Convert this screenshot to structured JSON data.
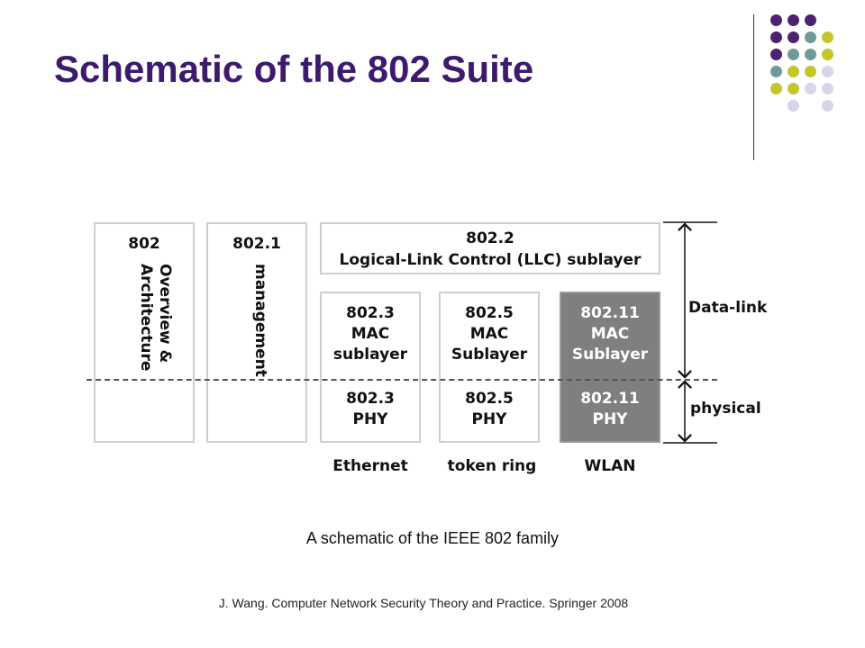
{
  "title": "Schematic of the 802 Suite",
  "colors": {
    "title": "#3d1a6e",
    "dot_purple": "#4b2370",
    "dot_teal": "#6f9a9a",
    "dot_olive": "#c5c62a",
    "dot_lavender": "#d6d6e8",
    "box_dark": "#7f7f7f"
  },
  "diagram": {
    "box_802": {
      "number": "802",
      "vertical_line1": "Overview &",
      "vertical_line2": "Architecture"
    },
    "box_8021": {
      "number": "802.1",
      "vertical_text": "management"
    },
    "box_8022": {
      "line1": "802.2",
      "line2": "Logical-Link Control (LLC) sublayer"
    },
    "ethernet_mac": {
      "line1": "802.3",
      "line2": "MAC",
      "line3": "sublayer"
    },
    "ethernet_phy": {
      "line1": "802.3",
      "line2": "PHY"
    },
    "token_mac": {
      "line1": "802.5",
      "line2": "MAC",
      "line3": "Sublayer"
    },
    "token_phy": {
      "line1": "802.5",
      "line2": "PHY"
    },
    "wlan_mac": {
      "line1": "802.11",
      "line2": "MAC",
      "line3": "Sublayer"
    },
    "wlan_phy": {
      "line1": "802.11",
      "line2": "PHY"
    },
    "side_labels": {
      "datalink": "Data-link",
      "physical": "physical"
    },
    "bottom_labels": {
      "ethernet": "Ethernet",
      "token": "token ring",
      "wlan": "WLAN"
    }
  },
  "caption": "A schematic of the IEEE 802 family",
  "citation": "J. Wang. Computer Network Security Theory and Practice. Springer 2008"
}
